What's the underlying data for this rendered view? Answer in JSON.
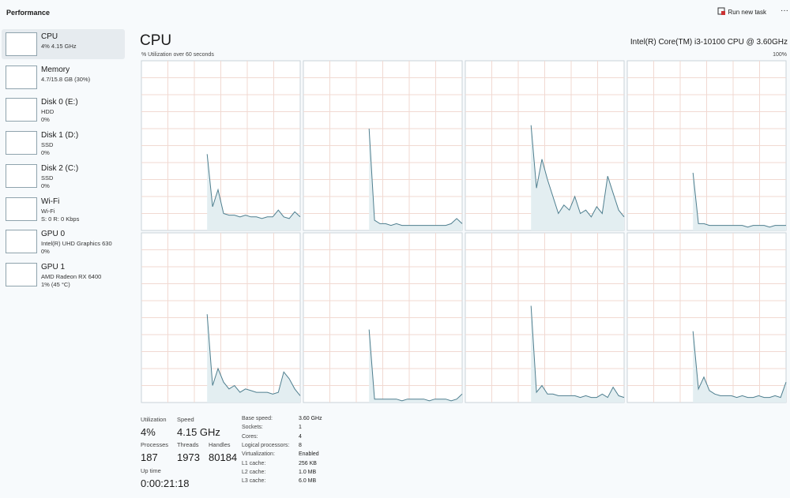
{
  "header": {
    "title": "Performance",
    "run_task": "Run new task",
    "more": "···"
  },
  "sidebar": [
    {
      "lines": [
        "CPU",
        "4% 4.15 GHz"
      ]
    },
    {
      "lines": [
        "Memory",
        "4.7/15.8 GB (30%)"
      ]
    },
    {
      "lines": [
        "Disk 0 (E:)",
        "HDD",
        "0%"
      ]
    },
    {
      "lines": [
        "Disk 1 (D:)",
        "SSD",
        "0%"
      ]
    },
    {
      "lines": [
        "Disk 2 (C:)",
        "SSD",
        "0%"
      ]
    },
    {
      "lines": [
        "Wi-Fi",
        "Wi-Fi",
        "S: 0 R: 0 Kbps"
      ]
    },
    {
      "lines": [
        "GPU 0",
        "Intel(R) UHD Graphics 630",
        "0%"
      ]
    },
    {
      "lines": [
        "GPU 1",
        "AMD Radeon RX 6400",
        "1% (45 °C)"
      ]
    }
  ],
  "main": {
    "title": "CPU",
    "processor": "Intel(R) Core(TM) i3-10100 CPU @ 3.60GHz",
    "graph_label": "% Utilization over 60 seconds",
    "graph_max": "100%"
  },
  "cores": {
    "ylim": [
      0,
      100
    ],
    "series": [
      {
        "values": [
          null,
          null,
          null,
          null,
          null,
          null,
          null,
          null,
          null,
          null,
          null,
          null,
          45,
          14,
          24,
          10,
          9,
          9,
          8,
          9,
          8,
          8,
          7,
          8,
          8,
          12,
          8,
          7,
          11,
          8
        ]
      },
      {
        "values": [
          null,
          null,
          null,
          null,
          null,
          null,
          null,
          null,
          null,
          null,
          null,
          null,
          60,
          6,
          4,
          4,
          3,
          4,
          3,
          3,
          3,
          3,
          3,
          3,
          3,
          3,
          3,
          4,
          7,
          4
        ]
      },
      {
        "values": [
          null,
          null,
          null,
          null,
          null,
          null,
          null,
          null,
          null,
          null,
          null,
          null,
          62,
          25,
          42,
          30,
          20,
          10,
          15,
          12,
          20,
          10,
          12,
          8,
          14,
          10,
          32,
          22,
          12,
          8
        ]
      },
      {
        "values": [
          null,
          null,
          null,
          null,
          null,
          null,
          null,
          null,
          null,
          null,
          null,
          null,
          34,
          4,
          4,
          3,
          3,
          3,
          3,
          3,
          3,
          3,
          2,
          3,
          3,
          3,
          2,
          3,
          3,
          3
        ]
      },
      {
        "values": [
          null,
          null,
          null,
          null,
          null,
          null,
          null,
          null,
          null,
          null,
          null,
          null,
          52,
          10,
          20,
          12,
          8,
          10,
          6,
          8,
          7,
          6,
          6,
          6,
          5,
          6,
          18,
          14,
          8,
          4
        ]
      },
      {
        "values": [
          null,
          null,
          null,
          null,
          null,
          null,
          null,
          null,
          null,
          null,
          null,
          null,
          43,
          2,
          2,
          2,
          2,
          2,
          1,
          2,
          2,
          2,
          2,
          1,
          2,
          2,
          2,
          1,
          2,
          5
        ]
      },
      {
        "values": [
          null,
          null,
          null,
          null,
          null,
          null,
          null,
          null,
          null,
          null,
          null,
          null,
          57,
          6,
          10,
          5,
          5,
          4,
          4,
          4,
          4,
          3,
          4,
          3,
          3,
          5,
          3,
          9,
          4,
          3
        ]
      },
      {
        "values": [
          null,
          null,
          null,
          null,
          null,
          null,
          null,
          null,
          null,
          null,
          null,
          null,
          42,
          8,
          15,
          7,
          5,
          4,
          4,
          4,
          3,
          4,
          3,
          3,
          4,
          3,
          3,
          4,
          3,
          12
        ]
      }
    ]
  },
  "stats": {
    "utilization": {
      "label": "Utilization",
      "value": "4%"
    },
    "speed": {
      "label": "Speed",
      "value": "4.15 GHz"
    },
    "processes": {
      "label": "Processes",
      "value": "187"
    },
    "threads": {
      "label": "Threads",
      "value": "1973"
    },
    "handles": {
      "label": "Handles",
      "value": "80184"
    },
    "uptime": {
      "label": "Up time",
      "value": "0:00:21:18"
    }
  },
  "specs": [
    {
      "label": "Base speed:",
      "value": "3.60 GHz"
    },
    {
      "label": "Sockets:",
      "value": "1"
    },
    {
      "label": "Cores:",
      "value": "4"
    },
    {
      "label": "Logical processors:",
      "value": "8"
    },
    {
      "label": "Virtualization:",
      "value": "Enabled"
    },
    {
      "label": "L1 cache:",
      "value": "256 KB"
    },
    {
      "label": "L2 cache:",
      "value": "1.0 MB"
    },
    {
      "label": "L3 cache:",
      "value": "6.0 MB"
    }
  ]
}
